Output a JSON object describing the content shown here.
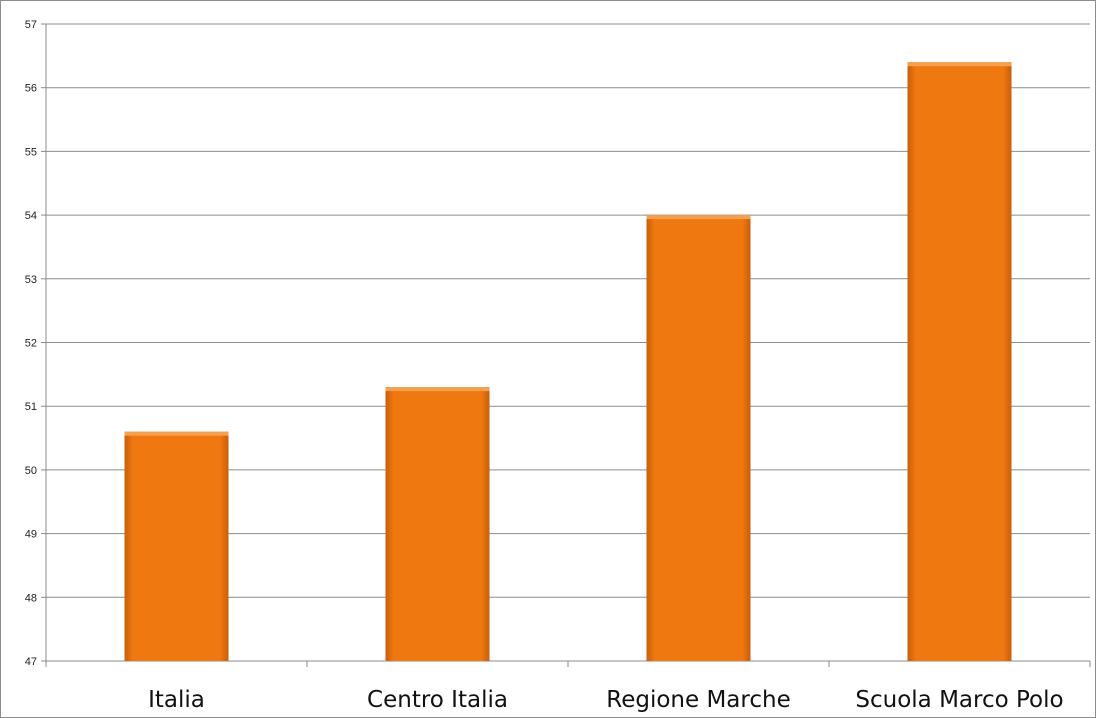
{
  "chart_data": {
    "type": "bar",
    "title": "",
    "xlabel": "",
    "ylabel": "",
    "categories": [
      "Italia",
      "Centro Italia",
      "Regione Marche",
      "Scuola Marco Polo"
    ],
    "values": [
      50.6,
      51.3,
      54.0,
      56.4
    ],
    "ylim": [
      47,
      57
    ],
    "yticks": [
      "47",
      "48",
      "49",
      "50",
      "51",
      "52",
      "53",
      "54",
      "55",
      "56",
      "57"
    ],
    "grid": true,
    "legend": "none",
    "colors": {
      "bar": "#F07810",
      "bar_top": "#F5A050",
      "bar_edge": "#C85F0A",
      "grid": "#8c8c8c",
      "axis": "#8c8c8c"
    }
  }
}
